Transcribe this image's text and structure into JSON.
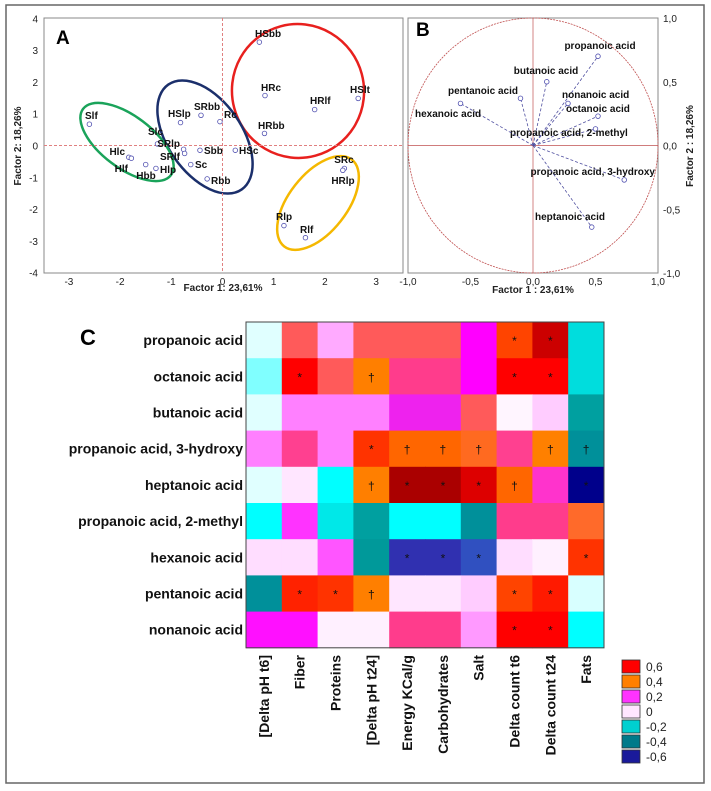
{
  "chart_data": [
    {
      "type": "scatter",
      "panel": "A",
      "xlabel": "Factor 1: 23,61%",
      "ylabel": "Factor 2: 18,26%",
      "xlim": [
        -3.5,
        3.5
      ],
      "ylim": [
        -4,
        4
      ],
      "xticks": [
        "-3",
        "-2",
        "-1",
        "0",
        "1",
        "2",
        "3"
      ],
      "yticks": [
        "4",
        "3",
        "2",
        "1",
        "0",
        "-1",
        "-2",
        "-3",
        "-4"
      ],
      "groups": [
        {
          "name": "red",
          "color": "#e8201e"
        },
        {
          "name": "blue",
          "color": "#1b2f6b"
        },
        {
          "name": "green",
          "color": "#1aa35a"
        },
        {
          "name": "yellow",
          "color": "#f5b800"
        }
      ],
      "points": [
        {
          "label": "HSbb",
          "x": 0.72,
          "y": 3.25
        },
        {
          "label": "HRc",
          "x": 0.83,
          "y": 1.57
        },
        {
          "label": "HRlf",
          "x": 1.8,
          "y": 1.13
        },
        {
          "label": "HSlt",
          "x": 2.65,
          "y": 1.48
        },
        {
          "label": "HRbb",
          "x": 0.82,
          "y": 0.38
        },
        {
          "label": "Slf",
          "x": -2.6,
          "y": 0.67
        },
        {
          "label": "Slc",
          "x": -1.27,
          "y": 0.05
        },
        {
          "label": "Hlc",
          "x": -1.83,
          "y": -0.37
        },
        {
          "label": "Hlf",
          "x": -1.78,
          "y": -0.4
        },
        {
          "label": "Hbb",
          "x": -1.5,
          "y": -0.6
        },
        {
          "label": "Hlp",
          "x": -1.3,
          "y": -0.72
        },
        {
          "label": "HSlp",
          "x": -0.82,
          "y": 0.72
        },
        {
          "label": "SRbb",
          "x": -0.42,
          "y": 0.95
        },
        {
          "label": "Rc",
          "x": -0.05,
          "y": 0.75
        },
        {
          "label": "SRlp",
          "x": -0.76,
          "y": -0.12
        },
        {
          "label": "SRlf",
          "x": -0.74,
          "y": -0.25
        },
        {
          "label": "Sbb",
          "x": -0.44,
          "y": -0.15
        },
        {
          "label": "Sc",
          "x": -0.62,
          "y": -0.6
        },
        {
          "label": "Rbb",
          "x": -0.3,
          "y": -1.05
        },
        {
          "label": "HSc",
          "x": 0.25,
          "y": -0.15
        },
        {
          "label": "SRc",
          "x": 2.38,
          "y": -0.72
        },
        {
          "label": "HRlp",
          "x": 2.35,
          "y": -0.78
        },
        {
          "label": "Rlp",
          "x": 1.2,
          "y": -2.52
        },
        {
          "label": "Rlf",
          "x": 1.62,
          "y": -2.9
        }
      ]
    },
    {
      "type": "scatter",
      "panel": "B",
      "xlabel": "Factor 1 : 23,61%",
      "ylabel": "Factor 2 : 18,26%",
      "xlim": [
        -1,
        1
      ],
      "ylim": [
        -1,
        1
      ],
      "xticks": [
        "-1,0",
        "-0,5",
        "0,0",
        "0,5",
        "1,0"
      ],
      "yticks": [
        "1,0",
        "0,5",
        "0,0",
        "-0,5",
        "-1,0"
      ],
      "vectors": [
        {
          "label": "propanoic acid",
          "x": 0.52,
          "y": 0.7
        },
        {
          "label": "butanoic acid",
          "x": 0.11,
          "y": 0.5
        },
        {
          "label": "pentanoic acid",
          "x": -0.1,
          "y": 0.37
        },
        {
          "label": "nonanoic acid",
          "x": 0.28,
          "y": 0.33
        },
        {
          "label": "octanoic acid",
          "x": 0.52,
          "y": 0.23
        },
        {
          "label": "propanoic acid, 2-methyl",
          "x": 0.5,
          "y": 0.13
        },
        {
          "label": "hexanoic acid",
          "x": -0.58,
          "y": 0.33
        },
        {
          "label": "propanoic acid, 3-hydroxy",
          "x": 0.73,
          "y": -0.27
        },
        {
          "label": "heptanoic acid",
          "x": 0.47,
          "y": -0.64
        }
      ]
    },
    {
      "type": "heatmap",
      "panel": "C",
      "rows": [
        "propanoic acid",
        "octanoic acid",
        "butanoic acid",
        "propanoic acid, 3-hydroxy",
        "heptanoic acid",
        "propanoic acid, 2-methyl",
        "hexanoic acid",
        "pentanoic acid",
        "nonanoic acid"
      ],
      "columns": [
        "[Delta pH t6]",
        "Fiber",
        "Proteins",
        "[Delta pH t24]",
        "Energy KCal/g",
        "Carbohydrates",
        "Salt",
        "Delta count t6",
        "Delta count t24",
        "Fats"
      ],
      "values": [
        [
          -0.05,
          0.45,
          0.1,
          0.45,
          0.45,
          0.45,
          0.2,
          0.5,
          0.7,
          -0.2
        ],
        [
          -0.1,
          0.6,
          0.45,
          0.4,
          0.3,
          0.3,
          0.2,
          0.6,
          0.6,
          -0.2
        ],
        [
          -0.05,
          0.15,
          0.15,
          0.15,
          0.2,
          0.2,
          0.45,
          0.0,
          0.05,
          -0.35
        ],
        [
          0.15,
          0.3,
          0.15,
          0.55,
          0.45,
          0.45,
          0.45,
          0.3,
          0.4,
          -0.4
        ],
        [
          -0.05,
          0.02,
          -0.2,
          0.4,
          0.75,
          0.75,
          0.65,
          0.45,
          0.25,
          -0.7
        ],
        [
          -0.2,
          0.2,
          -0.2,
          -0.35,
          -0.2,
          -0.2,
          -0.4,
          0.3,
          0.3,
          0.45
        ],
        [
          0.05,
          0.05,
          0.15,
          -0.35,
          -0.6,
          -0.6,
          -0.55,
          0.05,
          0.02,
          0.55
        ],
        [
          -0.4,
          0.6,
          0.55,
          0.4,
          0.03,
          0.03,
          0.05,
          0.5,
          0.6,
          -0.05
        ],
        [
          0.2,
          0.2,
          0.02,
          0.02,
          0.3,
          0.3,
          0.1,
          0.6,
          0.6,
          -0.2
        ]
      ],
      "cell_colors": [
        [
          "#e0ffff",
          "#ff5a5a",
          "#ffaaff",
          "#ff5a5a",
          "#ff5a5a",
          "#ff5a5a",
          "#ff00ff",
          "#ff4400",
          "#cc0000",
          "#00dddd"
        ],
        [
          "#80ffff",
          "#ff0000",
          "#ff5a5a",
          "#ff7f00",
          "#ff3c8c",
          "#ff3c8c",
          "#ff00ff",
          "#ff0000",
          "#ff0000",
          "#00dddd"
        ],
        [
          "#e0ffff",
          "#ff80ff",
          "#ff80ff",
          "#ff80ff",
          "#ee22ee",
          "#ee22ee",
          "#ff5a5a",
          "#fff5ff",
          "#ffccff",
          "#00a0a0"
        ],
        [
          "#ff80ff",
          "#ff4090",
          "#ff80ff",
          "#ff3300",
          "#ff6600",
          "#ff6600",
          "#ff6a20",
          "#ff4090",
          "#ff8000",
          "#00909a"
        ],
        [
          "#e0ffff",
          "#ffe6ff",
          "#00ffff",
          "#ff7f00",
          "#aa0000",
          "#aa0000",
          "#dd0000",
          "#ff6600",
          "#ff33cc",
          "#00008b"
        ],
        [
          "#00ffff",
          "#ff33ff",
          "#00e8e8",
          "#00a0a0",
          "#00ffff",
          "#00ffff",
          "#00909a",
          "#ff3c8c",
          "#ff3c8c",
          "#ff6a2a"
        ],
        [
          "#ffddff",
          "#ffddff",
          "#ff55ff",
          "#00999a",
          "#3030b0",
          "#3030b0",
          "#3050c0",
          "#ffddff",
          "#fff0ff",
          "#ff3300"
        ],
        [
          "#00909a",
          "#ff2200",
          "#ff3300",
          "#ff7f00",
          "#ffe6ff",
          "#ffe6ff",
          "#ffccff",
          "#ff4400",
          "#ff1a00",
          "#d8ffff"
        ],
        [
          "#ff10ff",
          "#ff10ff",
          "#fff0ff",
          "#fff0ff",
          "#ff3c8c",
          "#ff3c8c",
          "#ff99ff",
          "#ff0000",
          "#ff0000",
          "#00ffff"
        ]
      ],
      "significance": [
        [
          "",
          "",
          "",
          "",
          "",
          "",
          "",
          "*",
          "*",
          ""
        ],
        [
          "",
          "*",
          "",
          "†",
          "",
          "",
          "",
          "*",
          "*",
          ""
        ],
        [
          "",
          "",
          "",
          "",
          "",
          "",
          "",
          "",
          "",
          ""
        ],
        [
          "",
          "",
          "",
          "*",
          "†",
          "†",
          "†",
          "",
          "†",
          "†"
        ],
        [
          "",
          "",
          "",
          "†",
          "*",
          "*",
          "*",
          "†",
          "",
          "*"
        ],
        [
          "",
          "",
          "",
          "",
          "",
          "",
          "",
          "",
          "",
          ""
        ],
        [
          "",
          "",
          "",
          "",
          "*",
          "*",
          "*",
          "",
          "",
          "*"
        ],
        [
          "",
          "*",
          "*",
          "†",
          "",
          "",
          "",
          "*",
          "*",
          ""
        ],
        [
          "",
          "",
          "",
          "",
          "",
          "",
          "",
          "*",
          "*",
          ""
        ]
      ],
      "legend": [
        {
          "label": "0,6",
          "color": "#ff0000"
        },
        {
          "label": "0,4",
          "color": "#ff7f00"
        },
        {
          "label": "0,2",
          "color": "#ff33ff"
        },
        {
          "label": "0",
          "color": "#ffe6ff"
        },
        {
          "label": "-0,2",
          "color": "#00d0d0"
        },
        {
          "label": "-0,4",
          "color": "#007a8a"
        },
        {
          "label": "-0,6",
          "color": "#1a1a9a"
        }
      ]
    }
  ],
  "panels": {
    "a": "A",
    "b": "B",
    "c": "C"
  }
}
